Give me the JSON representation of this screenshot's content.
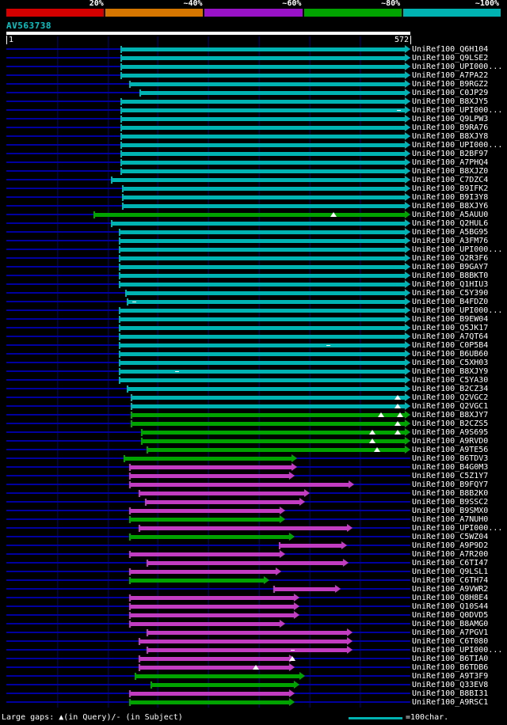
{
  "header": {
    "scale": {
      "segments": [
        {
          "label": "20%",
          "color": "#d40000"
        },
        {
          "label": "~40%",
          "color": "#d47600"
        },
        {
          "label": "~60%",
          "color": "#9912c8"
        },
        {
          "label": "~80%",
          "color": "#00a300"
        },
        {
          "label": "~100%",
          "color": "#00b3b3"
        }
      ]
    }
  },
  "colors": {
    "cyan": "#00b3b3",
    "green": "#00a300",
    "magenta": "#c23cc2",
    "grid": "#000066",
    "baseline": "#0000a0",
    "query_bar": "#ffffff"
  },
  "footer": {
    "gaps_label": "Large gaps: ▲(in Query)/- (in Subject)",
    "scale_label": "=100char."
  },
  "chart_data": {
    "type": "bar",
    "orientation": "horizontal",
    "title": "AV563738",
    "x_axis": {
      "label_start": "1",
      "label_end": "572",
      "min": 1,
      "max": 572
    },
    "legend": {
      "scale_line": "=100char.",
      "gap_in_query": "▲",
      "gap_in_subject": "-"
    },
    "rows": [
      {
        "label": "UniRef100_Q6H104",
        "color": "cyan",
        "start": 162,
        "end": 572
      },
      {
        "label": "UniRef100_Q9LSE2",
        "color": "cyan",
        "start": 162,
        "end": 572
      },
      {
        "label": "UniRef100_UPI000...",
        "color": "cyan",
        "start": 162,
        "end": 572
      },
      {
        "label": "UniRef100_A7PA22",
        "color": "cyan",
        "start": 162,
        "end": 572
      },
      {
        "label": "UniRef100_B9RGZ2",
        "color": "cyan",
        "start": 174,
        "end": 572
      },
      {
        "label": "UniRef100_C0JP29",
        "color": "cyan",
        "start": 188,
        "end": 572
      },
      {
        "label": "UniRef100_B8XJY5",
        "color": "cyan",
        "start": 162,
        "end": 572
      },
      {
        "label": "UniRef100_UPI000...",
        "color": "cyan",
        "start": 162,
        "end": 572,
        "markers": [
          {
            "pos": 556,
            "type": "dash"
          }
        ]
      },
      {
        "label": "UniRef100_Q9LPW3",
        "color": "cyan",
        "start": 162,
        "end": 572
      },
      {
        "label": "UniRef100_B9RA76",
        "color": "cyan",
        "start": 162,
        "end": 572
      },
      {
        "label": "UniRef100_B8XJY8",
        "color": "cyan",
        "start": 162,
        "end": 572
      },
      {
        "label": "UniRef100_UPI000...",
        "color": "cyan",
        "start": 162,
        "end": 572
      },
      {
        "label": "UniRef100_B2BF97",
        "color": "cyan",
        "start": 162,
        "end": 572
      },
      {
        "label": "UniRef100_A7PHQ4",
        "color": "cyan",
        "start": 162,
        "end": 572
      },
      {
        "label": "UniRef100_B8XJZ0",
        "color": "cyan",
        "start": 162,
        "end": 572
      },
      {
        "label": "UniRef100_C7DZC4",
        "color": "cyan",
        "start": 148,
        "end": 572
      },
      {
        "label": "UniRef100_B9IFK2",
        "color": "cyan",
        "start": 164,
        "end": 572
      },
      {
        "label": "UniRef100_B9I3Y8",
        "color": "cyan",
        "start": 164,
        "end": 572
      },
      {
        "label": "UniRef100_B8XJY6",
        "color": "cyan",
        "start": 164,
        "end": 572
      },
      {
        "label": "UniRef100_A5AUU0",
        "color": "green",
        "start": 123,
        "end": 572,
        "markers": [
          {
            "pos": 462,
            "type": "tri"
          }
        ]
      },
      {
        "label": "UniRef100_Q2HUL6",
        "color": "cyan",
        "start": 148,
        "end": 572
      },
      {
        "label": "UniRef100_A5BG95",
        "color": "cyan",
        "start": 159,
        "end": 572
      },
      {
        "label": "UniRef100_A3FM76",
        "color": "cyan",
        "start": 159,
        "end": 572
      },
      {
        "label": "UniRef100_UPI000...",
        "color": "cyan",
        "start": 159,
        "end": 572
      },
      {
        "label": "UniRef100_Q2R3F6",
        "color": "cyan",
        "start": 159,
        "end": 572
      },
      {
        "label": "UniRef100_B9GAY7",
        "color": "cyan",
        "start": 159,
        "end": 572
      },
      {
        "label": "UniRef100_B8BKT0",
        "color": "cyan",
        "start": 159,
        "end": 572
      },
      {
        "label": "UniRef100_Q1HIU3",
        "color": "cyan",
        "start": 159,
        "end": 572
      },
      {
        "label": "UniRef100_C5Y390",
        "color": "cyan",
        "start": 168,
        "end": 572
      },
      {
        "label": "UniRef100_B4FDZ0",
        "color": "cyan",
        "start": 170,
        "end": 572,
        "markers": [
          {
            "pos": 182,
            "type": "dash"
          }
        ]
      },
      {
        "label": "UniRef100_UPI000...",
        "color": "cyan",
        "start": 159,
        "end": 572
      },
      {
        "label": "UniRef100_B9EW04",
        "color": "cyan",
        "start": 159,
        "end": 572
      },
      {
        "label": "UniRef100_Q5JK17",
        "color": "cyan",
        "start": 159,
        "end": 572
      },
      {
        "label": "UniRef100_A7QT64",
        "color": "cyan",
        "start": 159,
        "end": 572
      },
      {
        "label": "UniRef100_C0P5B4",
        "color": "cyan",
        "start": 159,
        "end": 572,
        "markers": [
          {
            "pos": 456,
            "type": "dash"
          }
        ]
      },
      {
        "label": "UniRef100_B6UB60",
        "color": "cyan",
        "start": 159,
        "end": 572
      },
      {
        "label": "UniRef100_C5XH03",
        "color": "cyan",
        "start": 159,
        "end": 572
      },
      {
        "label": "UniRef100_B8XJY9",
        "color": "cyan",
        "start": 159,
        "end": 572,
        "markers": [
          {
            "pos": 242,
            "type": "dash"
          }
        ]
      },
      {
        "label": "UniRef100_C5YA30",
        "color": "cyan",
        "start": 159,
        "end": 572
      },
      {
        "label": "UniRef100_B2CZ34",
        "color": "cyan",
        "start": 170,
        "end": 572
      },
      {
        "label": "UniRef100_Q2VGC2",
        "color": "cyan",
        "start": 176,
        "end": 572,
        "markers": [
          {
            "pos": 553,
            "type": "tri"
          }
        ]
      },
      {
        "label": "UniRef100_Q2VGC1",
        "color": "cyan",
        "start": 176,
        "end": 572,
        "markers": [
          {
            "pos": 553,
            "type": "tri"
          }
        ]
      },
      {
        "label": "UniRef100_B8XJY7",
        "color": "green",
        "start": 176,
        "end": 572,
        "markers": [
          {
            "pos": 529,
            "type": "tri"
          },
          {
            "pos": 556,
            "type": "tri"
          }
        ]
      },
      {
        "label": "UniRef100_B2CZS5",
        "color": "green",
        "start": 176,
        "end": 572,
        "markers": [
          {
            "pos": 553,
            "type": "tri"
          }
        ]
      },
      {
        "label": "UniRef100_A9S695",
        "color": "green",
        "start": 191,
        "end": 572,
        "markers": [
          {
            "pos": 517,
            "type": "tri"
          },
          {
            "pos": 553,
            "type": "tri"
          }
        ]
      },
      {
        "label": "UniRef100_A9RVD0",
        "color": "green",
        "start": 191,
        "end": 572,
        "markers": [
          {
            "pos": 517,
            "type": "tri"
          }
        ]
      },
      {
        "label": "UniRef100_A9TE56",
        "color": "green",
        "start": 198,
        "end": 572,
        "markers": [
          {
            "pos": 524,
            "type": "tri"
          }
        ]
      },
      {
        "label": "UniRef100_B6TDV3",
        "color": "green",
        "start": 166,
        "end": 412
      },
      {
        "label": "UniRef100_B4G0M3",
        "color": "magenta",
        "start": 174,
        "end": 412
      },
      {
        "label": "UniRef100_C5Z1Y7",
        "color": "magenta",
        "start": 174,
        "end": 408
      },
      {
        "label": "UniRef100_B9FQY7",
        "color": "magenta",
        "start": 174,
        "end": 492
      },
      {
        "label": "UniRef100_B8B2K0",
        "color": "magenta",
        "start": 187,
        "end": 430
      },
      {
        "label": "UniRef100_B9SSC2",
        "color": "magenta",
        "start": 196,
        "end": 423
      },
      {
        "label": "UniRef100_B9SMX0",
        "color": "magenta",
        "start": 174,
        "end": 395
      },
      {
        "label": "UniRef100_A7NUH0",
        "color": "green",
        "start": 174,
        "end": 395
      },
      {
        "label": "UniRef100_UPI000...",
        "color": "magenta",
        "start": 187,
        "end": 490
      },
      {
        "label": "UniRef100_C5WZ04",
        "color": "green",
        "start": 174,
        "end": 408
      },
      {
        "label": "UniRef100_A9P9D2",
        "color": "magenta",
        "start": 386,
        "end": 482
      },
      {
        "label": "UniRef100_A7R200",
        "color": "magenta",
        "start": 174,
        "end": 395
      },
      {
        "label": "UniRef100_C6TI47",
        "color": "magenta",
        "start": 198,
        "end": 484
      },
      {
        "label": "UniRef100_Q9LSL1",
        "color": "magenta",
        "start": 174,
        "end": 389
      },
      {
        "label": "UniRef100_C6TH74",
        "color": "green",
        "start": 174,
        "end": 372
      },
      {
        "label": "UniRef100_A9VWR2",
        "color": "magenta",
        "start": 378,
        "end": 473
      },
      {
        "label": "UniRef100_Q8H8E4",
        "color": "magenta",
        "start": 174,
        "end": 415
      },
      {
        "label": "UniRef100_Q10S44",
        "color": "magenta",
        "start": 174,
        "end": 415
      },
      {
        "label": "UniRef100_Q0DVD5",
        "color": "magenta",
        "start": 174,
        "end": 415
      },
      {
        "label": "UniRef100_B8AMG0",
        "color": "magenta",
        "start": 174,
        "end": 395
      },
      {
        "label": "UniRef100_A7PGV1",
        "color": "magenta",
        "start": 198,
        "end": 490
      },
      {
        "label": "UniRef100_C6T080",
        "color": "magenta",
        "start": 187,
        "end": 490
      },
      {
        "label": "UniRef100_UPI000...",
        "color": "magenta",
        "start": 198,
        "end": 490,
        "markers": [
          {
            "pos": 406,
            "type": "dash"
          }
        ]
      },
      {
        "label": "UniRef100_B6TIA0",
        "color": "magenta",
        "start": 187,
        "end": 408,
        "markers": [
          {
            "pos": 404,
            "type": "tri"
          }
        ]
      },
      {
        "label": "UniRef100_B6TDB6",
        "color": "magenta",
        "start": 187,
        "end": 408,
        "markers": [
          {
            "pos": 352,
            "type": "tri"
          }
        ]
      },
      {
        "label": "UniRef100_A9T3F9",
        "color": "green",
        "start": 182,
        "end": 423
      },
      {
        "label": "UniRef100_Q33EV8",
        "color": "green",
        "start": 204,
        "end": 415
      },
      {
        "label": "UniRef100_B8BI31",
        "color": "magenta",
        "start": 174,
        "end": 408
      },
      {
        "label": "UniRef100_A9RSC1",
        "color": "green",
        "start": 174,
        "end": 408
      }
    ]
  }
}
